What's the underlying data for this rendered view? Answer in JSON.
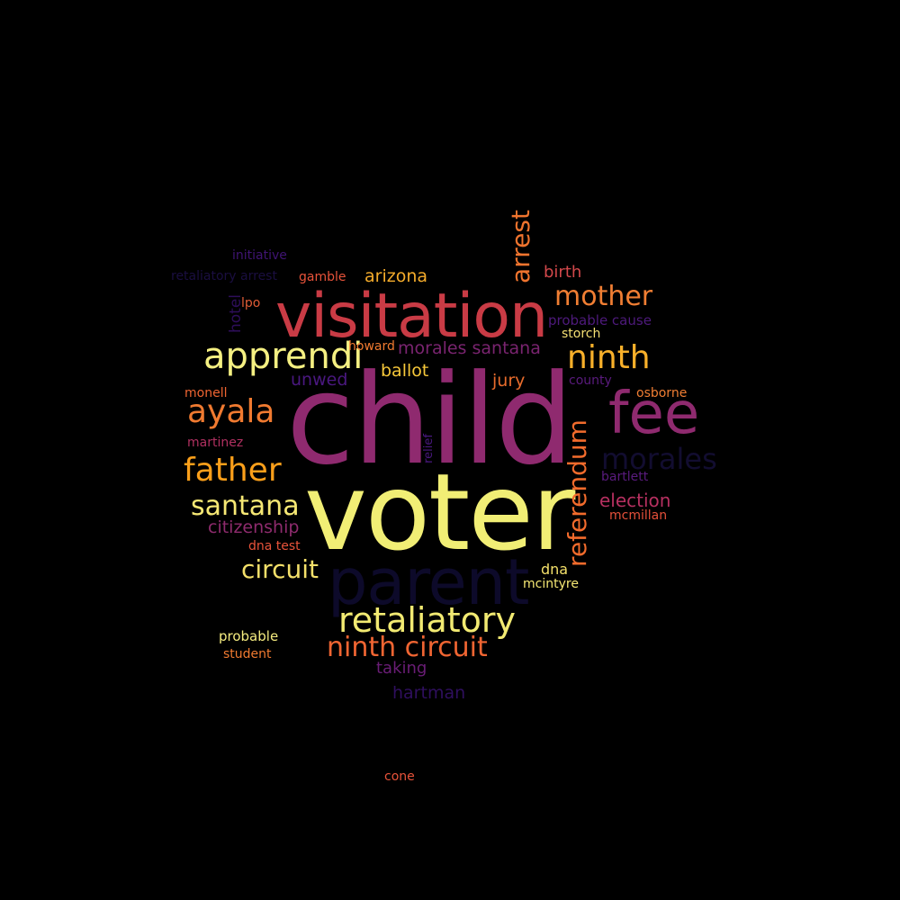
{
  "background": "#000000",
  "words": [
    {
      "text": "child",
      "color": "#8f2a6f"
    },
    {
      "text": "voter",
      "color": "#f1ee75"
    },
    {
      "text": "visitation",
      "color": "#c93b45"
    },
    {
      "text": "parent",
      "color": "#0d0a2a"
    },
    {
      "text": "fee",
      "color": "#8f2a6f"
    },
    {
      "text": "apprendi",
      "color": "#f5f082"
    },
    {
      "text": "retaliatory",
      "color": "#f2ea72"
    },
    {
      "text": "mother",
      "color": "#f07e33"
    },
    {
      "text": "ninth",
      "color": "#f8b02a"
    },
    {
      "text": "ayala",
      "color": "#f07a30"
    },
    {
      "text": "father",
      "color": "#fb9f1a"
    },
    {
      "text": "ninth circuit",
      "color": "#f06532"
    },
    {
      "text": "referendum",
      "color": "#f26b2c"
    },
    {
      "text": "morales",
      "color": "#120d30"
    },
    {
      "text": "santana",
      "color": "#f6e874"
    },
    {
      "text": "circuit",
      "color": "#f4e06a"
    },
    {
      "text": "arrest",
      "color": "#f0742e"
    },
    {
      "text": "citizenship",
      "color": "#8e2b6d"
    },
    {
      "text": "morales santana",
      "color": "#7a2470"
    },
    {
      "text": "election",
      "color": "#b63060"
    },
    {
      "text": "arizona",
      "color": "#f5ac2b"
    },
    {
      "text": "ballot",
      "color": "#f7c83a"
    },
    {
      "text": "jury",
      "color": "#e86c2c"
    },
    {
      "text": "unwed",
      "color": "#4a1880"
    },
    {
      "text": "birth",
      "color": "#d2484b"
    },
    {
      "text": "hartman",
      "color": "#2f0f5e"
    },
    {
      "text": "taking",
      "color": "#6a1d76"
    },
    {
      "text": "probable cause",
      "color": "#4e1a7c"
    },
    {
      "text": "initiative",
      "color": "#3f1473"
    },
    {
      "text": "retaliatory arrest",
      "color": "#1a0e40"
    },
    {
      "text": "gamble",
      "color": "#e8533a"
    },
    {
      "text": "hotel",
      "color": "#2e0e5a"
    },
    {
      "text": "lpo",
      "color": "#e05c36"
    },
    {
      "text": "howard",
      "color": "#f07a30"
    },
    {
      "text": "storch",
      "color": "#f5e074"
    },
    {
      "text": "county",
      "color": "#5a1b7e"
    },
    {
      "text": "osborne",
      "color": "#f07e33"
    },
    {
      "text": "monell",
      "color": "#f06532"
    },
    {
      "text": "martinez",
      "color": "#b03060"
    },
    {
      "text": "relief",
      "color": "#4a1880"
    },
    {
      "text": "bartlett",
      "color": "#5a1b7e"
    },
    {
      "text": "mcmillan",
      "color": "#e5503a"
    },
    {
      "text": "dna test",
      "color": "#e8533a"
    },
    {
      "text": "dna",
      "color": "#f4e06a"
    },
    {
      "text": "mcintyre",
      "color": "#f6e874"
    },
    {
      "text": "probable",
      "color": "#f5ec80"
    },
    {
      "text": "student",
      "color": "#f07a30"
    },
    {
      "text": "cone",
      "color": "#e8533a"
    },
    {
      "text": "",
      "color": "#0d0a2a"
    }
  ]
}
